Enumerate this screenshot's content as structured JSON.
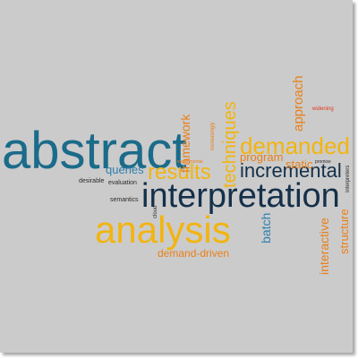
{
  "colors": {
    "background": "#cbcbcb",
    "teal": "#1b6b8a",
    "navy": "#14304a",
    "gold": "#f2b410",
    "orange": "#e8801a",
    "blue": "#2f7fb0",
    "dark": "#2a2a2a",
    "red": "#e23a1c"
  },
  "words": {
    "abstract": "abstract",
    "interpretation": "interpretation",
    "analysis": "analysis",
    "demanded": "demanded",
    "results": "results",
    "incremental": "incremental",
    "techniques": "techniques",
    "framework": "framework",
    "approach": "approach",
    "queries": "queries",
    "program": "program",
    "static": "static",
    "batch": "batch",
    "interactive": "interactive",
    "structure": "structure",
    "demand_driven": "demand-driven",
    "desirable": "desirable",
    "evaluation": "evaluation",
    "semantics": "semantics",
    "widening": "widening",
    "promise": "promise",
    "experimental": "experimental",
    "increasingly": "increasingly",
    "interpreters": "interpreters",
    "cloud": "cloud"
  }
}
